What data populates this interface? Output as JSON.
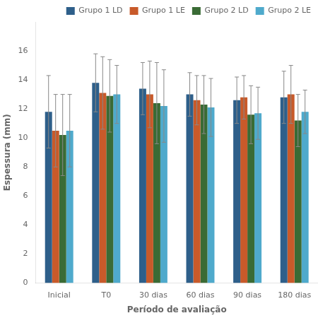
{
  "chart_data": {
    "type": "bar",
    "categories": [
      "Inicial",
      "T0",
      "30 dias",
      "60 dias",
      "90 dias",
      "180 dias"
    ],
    "series": [
      {
        "name": "Grupo 1 LD",
        "color": "#2E5F8A",
        "values": [
          11.8,
          13.8,
          13.4,
          13.0,
          12.6,
          12.8
        ],
        "errors": [
          2.5,
          2.0,
          1.8,
          1.5,
          1.6,
          1.8
        ]
      },
      {
        "name": "Grupo 1 LE",
        "color": "#C85A2A",
        "values": [
          10.5,
          13.1,
          13.0,
          12.6,
          12.8,
          13.0
        ],
        "errors": [
          2.5,
          2.5,
          2.3,
          1.7,
          1.5,
          2.0
        ]
      },
      {
        "name": "Grupo 2 LD",
        "color": "#3A6B35",
        "values": [
          10.2,
          12.9,
          12.4,
          12.3,
          11.6,
          11.2
        ],
        "errors": [
          2.8,
          2.5,
          2.8,
          2.0,
          2.0,
          1.8
        ]
      },
      {
        "name": "Grupo 2 LE",
        "color": "#4FAACC",
        "values": [
          10.5,
          13.0,
          12.2,
          12.1,
          11.7,
          11.8
        ],
        "errors": [
          2.5,
          2.0,
          2.5,
          2.0,
          1.8,
          1.5
        ]
      }
    ],
    "xlabel": "Período de avaliação",
    "ylabel": "Espessura (mm)",
    "ylim": [
      0,
      18
    ],
    "yticks": [
      0,
      2,
      4,
      6,
      8,
      10,
      12,
      14,
      16
    ],
    "grid": false,
    "legend": "upper right"
  }
}
